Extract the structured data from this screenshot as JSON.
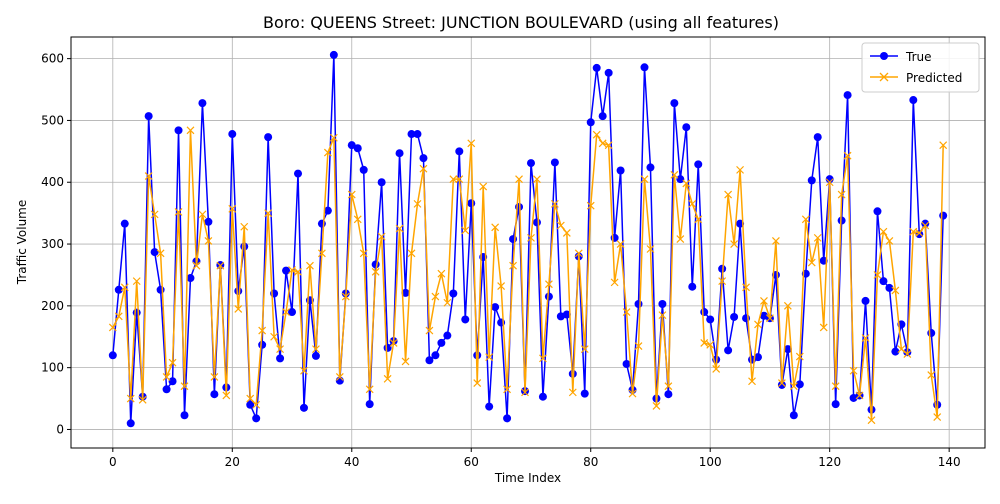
{
  "chart_data": {
    "type": "line",
    "title": "Boro: QUEENS Street: JUNCTION BOULEVARD (using all features)",
    "xlabel": "Time Index",
    "ylabel": "Traffic Volume",
    "xlim": [
      -7,
      146
    ],
    "ylim": [
      -30,
      635
    ],
    "xticks": [
      0,
      20,
      40,
      60,
      80,
      100,
      120,
      140
    ],
    "yticks": [
      0,
      100,
      200,
      300,
      400,
      500,
      600
    ],
    "grid": true,
    "legend_position": "top-right",
    "series": [
      {
        "name": "True",
        "color": "#0000ff",
        "marker": "circle",
        "values": [
          120,
          226,
          333,
          10,
          189,
          53,
          507,
          287,
          226,
          65,
          78,
          484,
          23,
          245,
          272,
          528,
          336,
          57,
          266,
          68,
          478,
          224,
          296,
          40,
          18,
          137,
          473,
          220,
          115,
          257,
          190,
          414,
          35,
          209,
          119,
          333,
          354,
          606,
          79,
          220,
          460,
          455,
          420,
          41,
          267,
          400,
          132,
          143,
          447,
          221,
          478,
          478,
          439,
          112,
          120,
          140,
          152,
          220,
          450,
          178,
          366,
          120,
          279,
          37,
          198,
          173,
          18,
          308,
          360,
          62,
          431,
          335,
          53,
          215,
          432,
          183,
          186,
          90,
          280,
          58,
          497,
          585,
          507,
          577,
          310,
          419,
          106,
          64,
          203,
          586,
          424,
          50,
          203,
          57,
          528,
          405,
          489,
          231,
          429,
          190,
          178,
          113,
          260,
          128,
          182,
          333,
          180,
          113,
          117,
          184,
          180,
          250,
          72,
          130,
          23,
          73,
          252,
          403,
          473,
          273,
          405,
          41,
          338,
          541,
          51,
          55,
          208,
          32,
          353,
          240,
          229,
          126,
          170,
          125,
          533,
          316,
          333,
          156,
          40,
          346
        ]
      },
      {
        "name": "Predicted",
        "color": "#ffa500",
        "marker": "x",
        "values": [
          165,
          183,
          230,
          50,
          240,
          48,
          410,
          348,
          285,
          85,
          108,
          352,
          70,
          484,
          265,
          348,
          305,
          85,
          265,
          55,
          357,
          195,
          328,
          50,
          40,
          160,
          350,
          150,
          130,
          190,
          258,
          255,
          95,
          265,
          130,
          285,
          448,
          472,
          85,
          215,
          380,
          340,
          285,
          65,
          255,
          312,
          82,
          140,
          325,
          110,
          285,
          365,
          422,
          160,
          215,
          252,
          205,
          405,
          405,
          322,
          463,
          75,
          393,
          117,
          327,
          232,
          65,
          265,
          405,
          60,
          310,
          405,
          115,
          235,
          365,
          330,
          318,
          60,
          285,
          130,
          362,
          477,
          463,
          460,
          238,
          300,
          190,
          58,
          135,
          405,
          292,
          38,
          185,
          70,
          412,
          308,
          398,
          365,
          340,
          140,
          137,
          98,
          240,
          380,
          300,
          420,
          230,
          78,
          170,
          208,
          180,
          305,
          75,
          200,
          70,
          118,
          340,
          270,
          310,
          165,
          400,
          70,
          380,
          443,
          95,
          55,
          148,
          15,
          250,
          320,
          305,
          225,
          130,
          122,
          320,
          318,
          330,
          88,
          20,
          460
        ]
      }
    ]
  }
}
